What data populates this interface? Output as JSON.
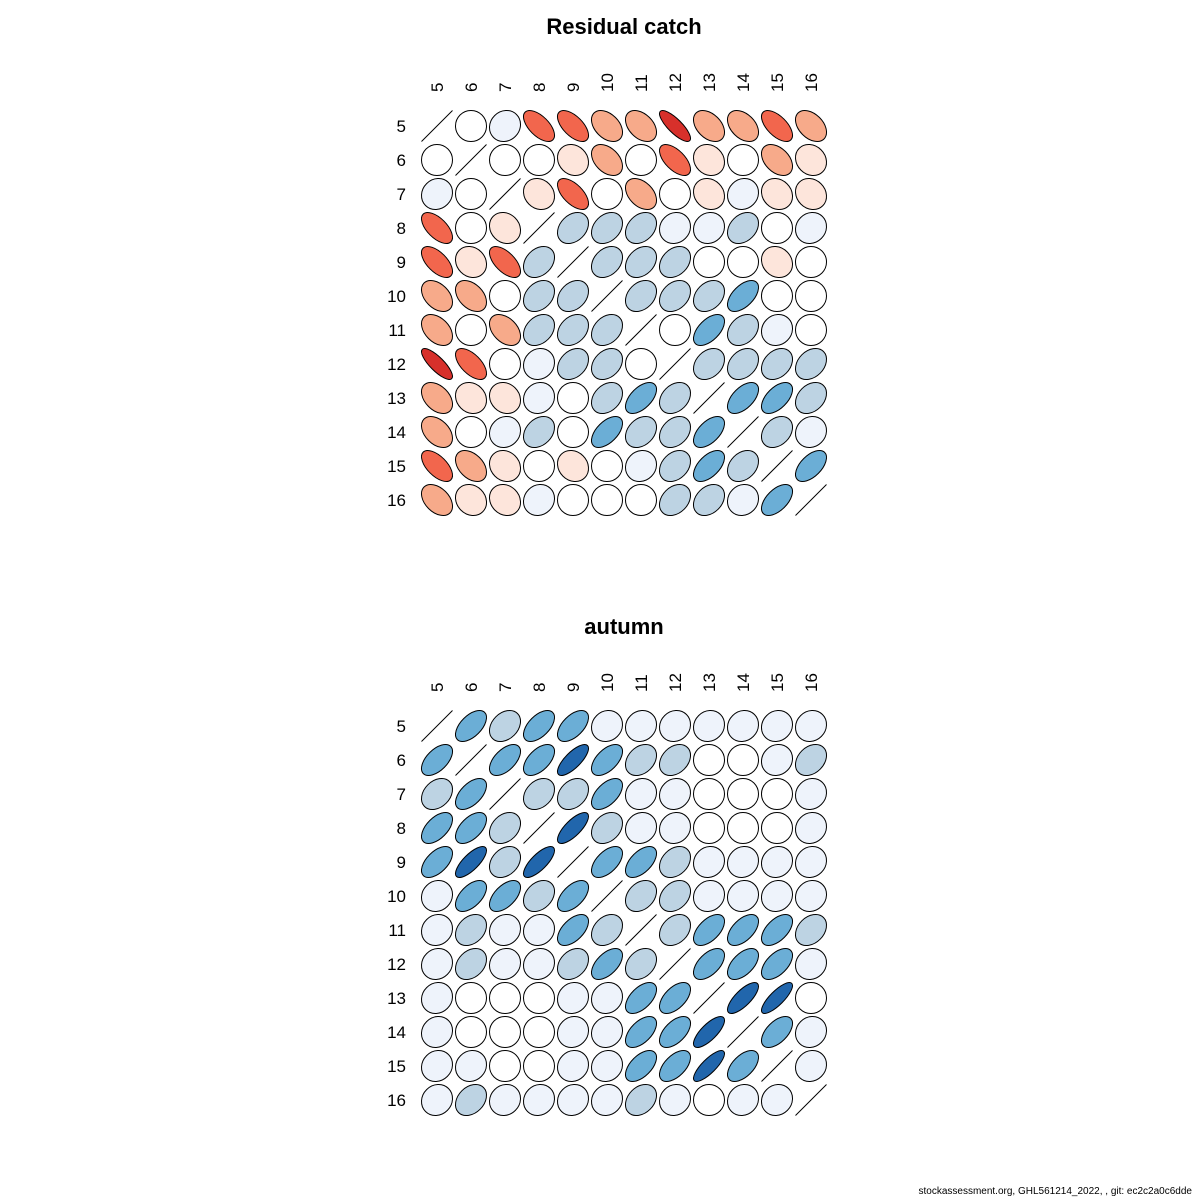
{
  "chart_data": [
    {
      "type": "heatmap",
      "subtype": "correlation-ellipse",
      "title": "Residual catch",
      "labels": [
        "5",
        "6",
        "7",
        "8",
        "9",
        "10",
        "11",
        "12",
        "13",
        "14",
        "15",
        "16"
      ],
      "matrix": [
        [
          1,
          0,
          -0.1,
          0.6,
          0.6,
          0.4,
          0.4,
          0.8,
          0.4,
          0.4,
          0.6,
          0.4
        ],
        [
          0,
          1,
          0,
          0,
          0.15,
          0.4,
          0,
          0.6,
          0.15,
          0,
          0.4,
          0.15
        ],
        [
          -0.1,
          0,
          1,
          0.15,
          0.6,
          0,
          0.4,
          0,
          0.15,
          -0.1,
          0.15,
          0.15
        ],
        [
          0.6,
          0,
          0.15,
          1,
          -0.3,
          -0.3,
          -0.3,
          -0.1,
          -0.1,
          -0.3,
          0,
          -0.1
        ],
        [
          0.6,
          0.15,
          0.6,
          -0.3,
          1,
          -0.3,
          -0.3,
          -0.3,
          0,
          0,
          0.15,
          0
        ],
        [
          0.4,
          0.4,
          0,
          -0.3,
          -0.3,
          1,
          -0.3,
          -0.3,
          -0.3,
          -0.55,
          0,
          0
        ],
        [
          0.4,
          0,
          0.4,
          -0.3,
          -0.3,
          -0.3,
          1,
          0,
          -0.55,
          -0.3,
          -0.1,
          0
        ],
        [
          0.8,
          0.6,
          0,
          -0.1,
          -0.3,
          -0.3,
          0,
          1,
          -0.3,
          -0.3,
          -0.3,
          -0.3
        ],
        [
          0.4,
          0.15,
          0.15,
          -0.1,
          0,
          -0.3,
          -0.55,
          -0.3,
          1,
          -0.55,
          -0.55,
          -0.3
        ],
        [
          0.4,
          0,
          -0.1,
          -0.3,
          0,
          -0.55,
          -0.3,
          -0.3,
          -0.55,
          1,
          -0.3,
          -0.1
        ],
        [
          0.6,
          0.4,
          0.15,
          0,
          0.15,
          0,
          -0.1,
          -0.3,
          -0.55,
          -0.3,
          1,
          -0.55
        ],
        [
          0.4,
          0.15,
          0.15,
          -0.1,
          0,
          0,
          0,
          -0.3,
          -0.3,
          -0.1,
          -0.55,
          1
        ]
      ]
    },
    {
      "type": "heatmap",
      "subtype": "correlation-ellipse",
      "title": "autumn",
      "labels": [
        "5",
        "6",
        "7",
        "8",
        "9",
        "10",
        "11",
        "12",
        "13",
        "14",
        "15",
        "16"
      ],
      "matrix": [
        [
          1,
          -0.55,
          -0.3,
          -0.55,
          -0.55,
          -0.1,
          -0.1,
          -0.1,
          -0.1,
          -0.1,
          -0.1,
          -0.1
        ],
        [
          -0.55,
          1,
          -0.55,
          -0.55,
          -0.75,
          -0.55,
          -0.3,
          -0.3,
          0,
          0,
          -0.1,
          -0.3
        ],
        [
          -0.3,
          -0.55,
          1,
          -0.3,
          -0.3,
          -0.55,
          -0.1,
          -0.1,
          0,
          0,
          0,
          -0.1
        ],
        [
          -0.55,
          -0.55,
          -0.3,
          1,
          -0.75,
          -0.3,
          -0.1,
          -0.1,
          0,
          0,
          0,
          -0.1
        ],
        [
          -0.55,
          -0.75,
          -0.3,
          -0.75,
          1,
          -0.55,
          -0.55,
          -0.3,
          -0.1,
          -0.1,
          -0.1,
          -0.1
        ],
        [
          -0.1,
          -0.55,
          -0.55,
          -0.3,
          -0.55,
          1,
          -0.3,
          -0.3,
          -0.1,
          -0.1,
          -0.1,
          -0.1
        ],
        [
          -0.1,
          -0.3,
          -0.1,
          -0.1,
          -0.55,
          -0.3,
          1,
          -0.3,
          -0.55,
          -0.55,
          -0.55,
          -0.3
        ],
        [
          -0.1,
          -0.3,
          -0.1,
          -0.1,
          -0.3,
          -0.55,
          -0.3,
          1,
          -0.55,
          -0.55,
          -0.55,
          -0.1
        ],
        [
          -0.1,
          0,
          0,
          0,
          -0.1,
          -0.1,
          -0.55,
          -0.55,
          1,
          -0.75,
          -0.8,
          0
        ],
        [
          -0.1,
          0,
          0,
          0,
          -0.1,
          -0.1,
          -0.55,
          -0.55,
          -0.75,
          1,
          -0.55,
          -0.1
        ],
        [
          -0.1,
          -0.1,
          0,
          0,
          -0.1,
          -0.1,
          -0.55,
          -0.55,
          -0.8,
          -0.55,
          1,
          -0.1
        ],
        [
          -0.1,
          -0.3,
          -0.1,
          -0.1,
          -0.1,
          -0.1,
          -0.3,
          -0.1,
          0,
          -0.1,
          -0.1,
          1
        ]
      ]
    }
  ],
  "palette": {
    "neg_strong": "#2166AC",
    "neg_mid": "#6BAED6",
    "neg_light": "#BDD3E3",
    "neg_faint": "#EEF3FB",
    "zero": "#FFFFFF",
    "pos_faint": "#FDE5DB",
    "pos_light": "#F7AA8A",
    "pos_mid": "#F2664D",
    "pos_strong": "#D7302B"
  },
  "footer": "stockassessment.org, GHL561214_2022,  , git: ec2c2a0c6dde"
}
